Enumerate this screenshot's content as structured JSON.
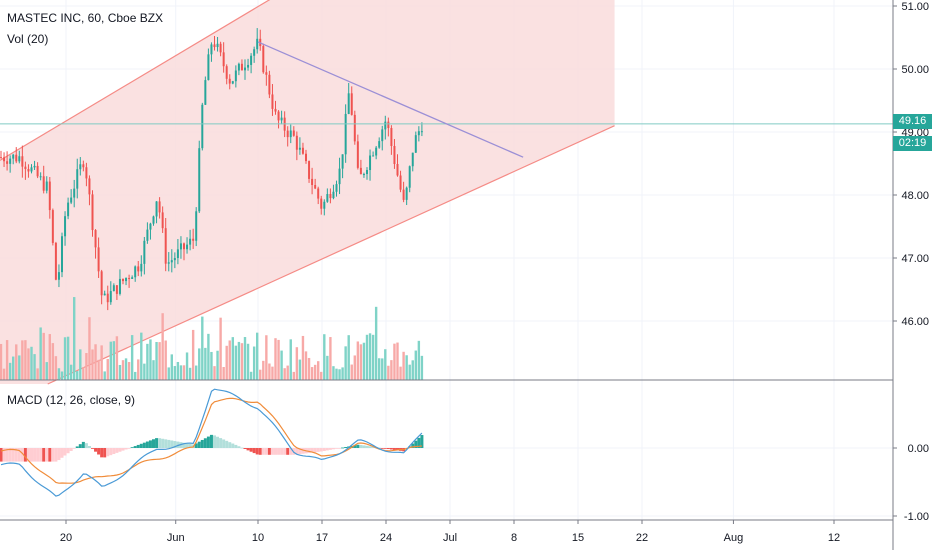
{
  "header": {
    "symbol_line": "MASTEC INC, 60, Cboe BZX",
    "volume_label": "Vol (20)",
    "macd_label": "MACD (12, 26, close, 9)"
  },
  "price_tag": {
    "value": "49.16",
    "countdown": "02:19"
  },
  "colors": {
    "up": "#26a69a",
    "down": "#ef5350",
    "vol_up": "#7fd3c7",
    "vol_down": "#f7a9a7",
    "channel_fill": "#f9dcdc",
    "channel_line": "#f58b86",
    "trend_line": "#9b8fd6",
    "hline": "#80cbc4",
    "macd_line": "#4a9ad6",
    "signal_line": "#f08c3a"
  },
  "axes": {
    "price_ticks": [
      "51.00",
      "50.00",
      "49.00",
      "48.00",
      "47.00",
      "46.00"
    ],
    "macd_ticks": [
      "0.00",
      "-1.00"
    ],
    "x_ticks": [
      "20",
      "Jun",
      "10",
      "17",
      "24",
      "Jul",
      "8",
      "15",
      "22",
      "Aug",
      "12"
    ]
  },
  "chart_data": {
    "type": "candlestick",
    "title": "MASTEC INC, 60, Cboe BZX",
    "ylim": [
      45.0,
      51.1
    ],
    "last_price": 49.16,
    "price_series_checkpoints": [
      {
        "x": "May 15",
        "y": 48.6
      },
      {
        "x": "May 18",
        "y": 48.1
      },
      {
        "x": "May 19",
        "y": 46.5
      },
      {
        "x": "May 20",
        "y": 47.8
      },
      {
        "x": "May 22",
        "y": 48.6
      },
      {
        "x": "May 24",
        "y": 46.3
      },
      {
        "x": "May 28",
        "y": 46.9
      },
      {
        "x": "May 30",
        "y": 48.0
      },
      {
        "x": "May 31",
        "y": 46.9
      },
      {
        "x": "Jun 3",
        "y": 47.3
      },
      {
        "x": "Jun 4",
        "y": 49.6
      },
      {
        "x": "Jun 5",
        "y": 50.5
      },
      {
        "x": "Jun 7",
        "y": 49.8
      },
      {
        "x": "Jun 10",
        "y": 50.4
      },
      {
        "x": "Jun 12",
        "y": 49.2
      },
      {
        "x": "Jun 14",
        "y": 48.9
      },
      {
        "x": "Jun 17",
        "y": 47.8
      },
      {
        "x": "Jun 19",
        "y": 48.4
      },
      {
        "x": "Jun 20",
        "y": 49.7
      },
      {
        "x": "Jun 21",
        "y": 48.2
      },
      {
        "x": "Jun 24",
        "y": 49.2
      },
      {
        "x": "Jun 26",
        "y": 47.8
      },
      {
        "x": "Jun 27",
        "y": 48.8
      },
      {
        "x": "Jun 28",
        "y": 49.16
      }
    ],
    "macd_series_checkpoints": [
      {
        "x": "May 15",
        "macd": -0.25,
        "signal": -0.05
      },
      {
        "x": "May 19",
        "macd": -0.75,
        "signal": -0.55
      },
      {
        "x": "May 22",
        "macd": -0.35,
        "signal": -0.45
      },
      {
        "x": "May 24",
        "macd": -0.6,
        "signal": -0.45
      },
      {
        "x": "May 30",
        "macd": 0.0,
        "signal": -0.15
      },
      {
        "x": "Jun 3",
        "macd": 0.05,
        "signal": 0.0
      },
      {
        "x": "Jun 5",
        "macd": 0.9,
        "signal": 0.7
      },
      {
        "x": "Jun 10",
        "macd": 0.6,
        "signal": 0.7
      },
      {
        "x": "Jun 14",
        "macd": -0.05,
        "signal": 0.05
      },
      {
        "x": "Jun 17",
        "macd": -0.2,
        "signal": -0.15
      },
      {
        "x": "Jun 21",
        "macd": 0.1,
        "signal": 0.05
      },
      {
        "x": "Jun 26",
        "macd": -0.1,
        "signal": -0.05
      },
      {
        "x": "Jun 28",
        "macd": 0.25,
        "signal": 0.05
      }
    ],
    "channel": {
      "upper": [
        {
          "x": "May 15",
          "y": 48.55
        },
        {
          "x": "Jun 13",
          "y": 51.25
        }
      ],
      "lower": [
        {
          "x": "May 18",
          "y": 45.0
        },
        {
          "x": "Jul 19",
          "y": 49.1
        }
      ]
    },
    "trendline": [
      {
        "x": "Jun 10",
        "y": 50.43
      },
      {
        "x": "Jul 9",
        "y": 48.6
      }
    ]
  }
}
